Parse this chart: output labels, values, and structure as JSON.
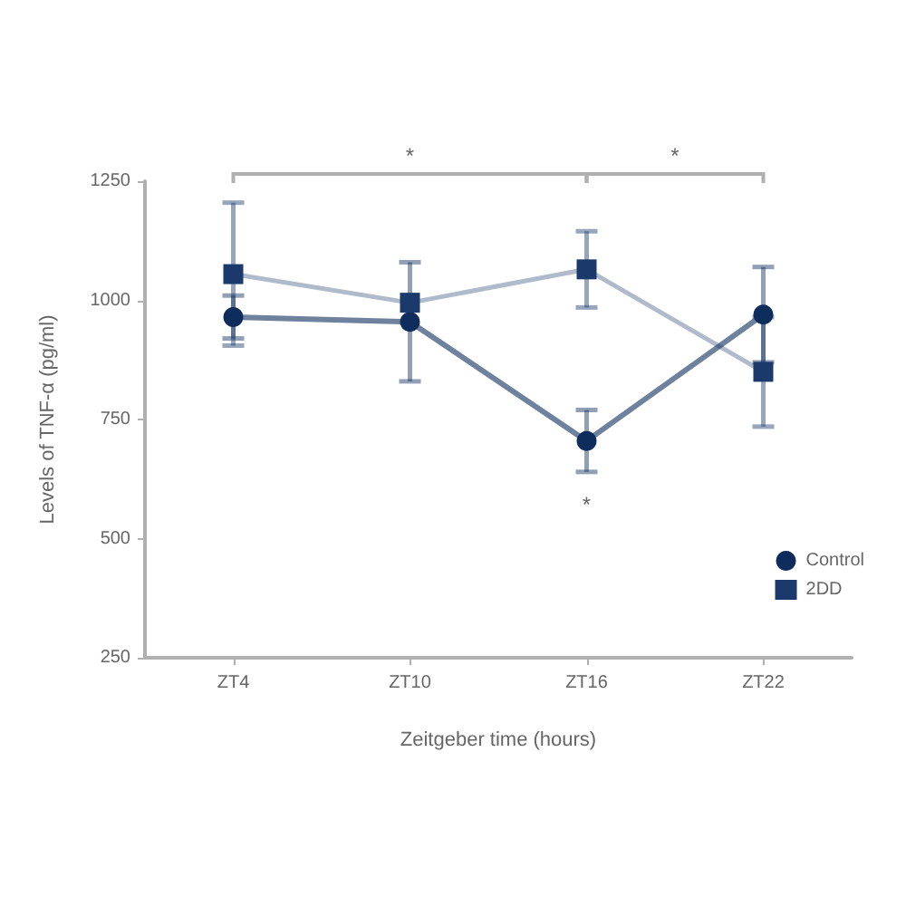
{
  "chart_data": {
    "type": "line",
    "xlabel": "Zeitgeber time (hours)",
    "ylabel": "Levels of TNF-α (pg/ml)",
    "categories": [
      "ZT4",
      "ZT10",
      "ZT16",
      "ZT22"
    ],
    "series": [
      {
        "name": "Control",
        "color": "#0e2d5c",
        "marker": "circle",
        "values": [
          965,
          955,
          705,
          970
        ],
        "errors": [
          45,
          125,
          65,
          100
        ]
      },
      {
        "name": "2DD",
        "color": "#1b3a6b",
        "marker": "square",
        "values": [
          1055,
          995,
          1065,
          850
        ],
        "errors": [
          150,
          null,
          80,
          115
        ]
      }
    ],
    "ylim": [
      250,
      1250
    ],
    "yticks": [
      250,
      500,
      750,
      1000,
      1250
    ],
    "grid": false,
    "legend": "bottom right",
    "annotations": [
      "*",
      "*",
      "*"
    ]
  }
}
